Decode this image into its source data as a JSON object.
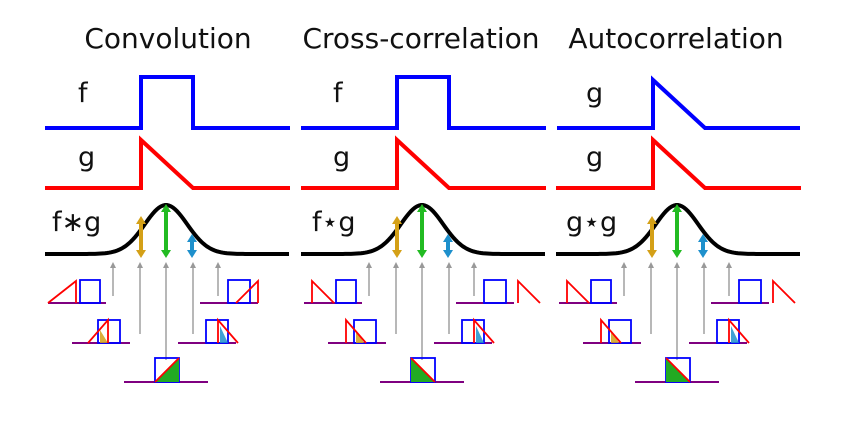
{
  "panels": [
    {
      "title": "Convolution",
      "signal_labels": [
        "f",
        "g",
        "f∗g"
      ],
      "kind": "convolution"
    },
    {
      "title": "Cross-correlation",
      "signal_labels": [
        "f",
        "g",
        "f⋆g"
      ],
      "kind": "cross-correlation"
    },
    {
      "title": "Autocorrelation",
      "signal_labels": [
        "g",
        "g",
        "g⋆g"
      ],
      "kind": "autocorrelation"
    }
  ],
  "colors": {
    "f_trace": "#0000ff",
    "g_trace": "#ff0000",
    "result_trace": "#000000",
    "marker_left": "#d4a017",
    "marker_center": "#22bb22",
    "marker_right": "#1e90cc",
    "overlap_fill": "#22aa22",
    "baseline": "#7f0080",
    "arrow_gray": "#999999"
  }
}
